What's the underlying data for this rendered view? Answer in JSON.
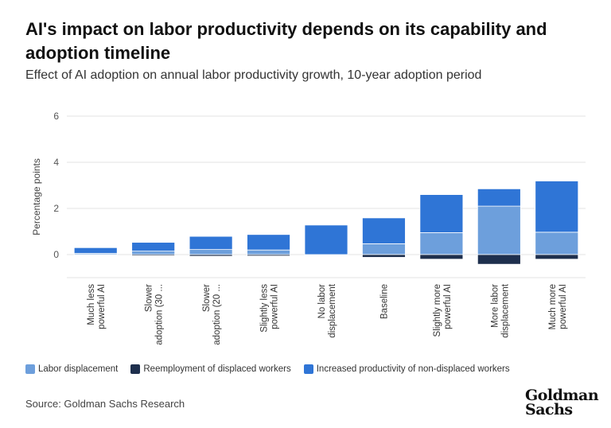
{
  "title": "AI's impact on labor productivity depends on its capability and adoption timeline",
  "subtitle": "Effect of AI adoption on annual labor productivity growth, 10-year adoption period",
  "source": "Source: Goldman Sachs Research",
  "logo": {
    "line1": "Goldman",
    "line2": "Sachs"
  },
  "chart_data": {
    "type": "bar",
    "stacked": true,
    "categories": [
      [
        "Much less",
        "powerful AI"
      ],
      [
        "Slower",
        "adoption (30 ..."
      ],
      [
        "Slower",
        "adoption (20 ..."
      ],
      [
        "Slightly less",
        "powerful AI"
      ],
      [
        "No labor",
        "displacement"
      ],
      [
        "Baseline"
      ],
      [
        "Slightly more",
        "powerful AI"
      ],
      [
        "More labor",
        "displacement"
      ],
      [
        "Much more",
        "powerful AI"
      ]
    ],
    "series": [
      {
        "name": "Labor displacement",
        "color": "#6d9fdc",
        "values": [
          0.05,
          0.15,
          0.22,
          0.2,
          0.0,
          0.47,
          0.95,
          2.1,
          0.97
        ]
      },
      {
        "name": "Reemployment of displaced workers",
        "color": "#1e2f4d",
        "values": [
          -0.02,
          -0.05,
          -0.07,
          -0.06,
          0.0,
          -0.12,
          -0.2,
          -0.42,
          -0.2
        ]
      },
      {
        "name": "Increased productivity of non-displaced workers",
        "color": "#2f75d6",
        "values": [
          0.25,
          0.38,
          0.57,
          0.67,
          1.28,
          1.12,
          1.65,
          0.75,
          2.22
        ]
      }
    ],
    "ylabel": "Percentage points",
    "ylim": [
      -1,
      6
    ],
    "yticks": [
      0,
      2,
      4,
      6
    ],
    "grid": true,
    "legend_position": "bottom"
  }
}
